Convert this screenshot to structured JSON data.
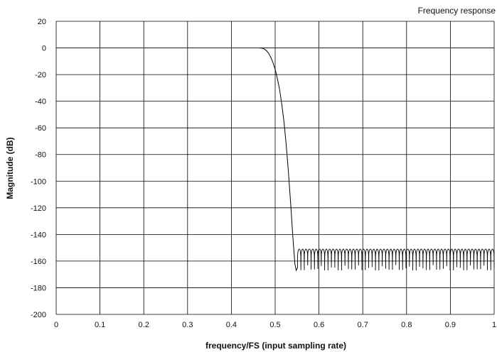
{
  "chart_data": {
    "type": "line",
    "title": "Frequency response",
    "xlabel": "frequency/FS (input sampling rate)",
    "ylabel": "Magnitude (dB)",
    "xlim": [
      0,
      1
    ],
    "ylim": [
      -200,
      20
    ],
    "x_ticks": [
      0,
      0.1,
      0.2,
      0.3,
      0.4,
      0.5,
      0.6,
      0.7,
      0.8,
      0.9,
      1
    ],
    "x_tick_labels": [
      "0",
      "0.1",
      "0.2",
      "0.3",
      "0.4",
      "0.5",
      "0.6",
      "0.7",
      "0.8",
      "0.9",
      "1"
    ],
    "y_ticks": [
      20,
      0,
      -20,
      -40,
      -60,
      -80,
      -100,
      -120,
      -140,
      -160,
      -180,
      -200
    ],
    "y_tick_labels": [
      "20",
      "0",
      "-20",
      "-40",
      "-60",
      "-80",
      "-100",
      "-120",
      "-140",
      "-160",
      "-180",
      "-200"
    ],
    "grid": true,
    "colors": {
      "line": "#000000",
      "grid": "#000000",
      "background": "#ffffff"
    },
    "series": [
      {
        "x": [
          0.463,
          0.47,
          0.475,
          0.48,
          0.485,
          0.49,
          0.495,
          0.5,
          0.505,
          0.51,
          0.515,
          0.52,
          0.525,
          0.53,
          0.535,
          0.54,
          0.545,
          0.548,
          0.551
        ],
        "y": [
          0,
          -0.2,
          -0.8,
          -2,
          -4,
          -7,
          -11,
          -16,
          -23,
          -31,
          -42,
          -55,
          -72,
          -92,
          -115,
          -140,
          -162,
          -167,
          -165
        ]
      }
    ],
    "stopband": {
      "x_start": 0.551,
      "x_end": 1.0,
      "peak_db": -151,
      "notch_db_range": [
        -162,
        -167
      ],
      "lobe_count": 58
    }
  }
}
